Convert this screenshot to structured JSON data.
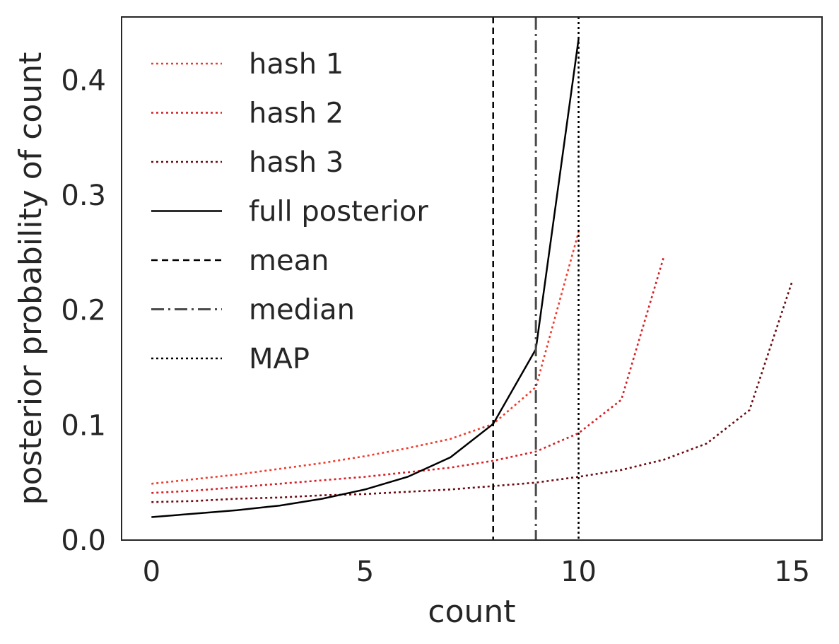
{
  "chart_data": {
    "type": "line",
    "title": "",
    "xlabel": "count",
    "ylabel": "posterior probability of count",
    "xlim": [
      -0.7,
      15.7
    ],
    "ylim": [
      0.0,
      0.455
    ],
    "xticks": [
      0,
      5,
      10,
      15
    ],
    "xtick_labels": [
      "0",
      "5",
      "10",
      "15"
    ],
    "yticks": [
      0.0,
      0.1,
      0.2,
      0.3,
      0.4
    ],
    "ytick_labels": [
      "0.0",
      "0.1",
      "0.2",
      "0.3",
      "0.4"
    ],
    "grid": false,
    "legend_position": "top-left",
    "series": [
      {
        "name": "hash 1",
        "style": "dotted",
        "color": "#ee3b2c",
        "x": [
          0,
          1,
          2,
          3,
          4,
          5,
          6,
          7,
          8,
          9,
          10
        ],
        "y": [
          0.049,
          0.053,
          0.057,
          0.062,
          0.067,
          0.073,
          0.08,
          0.088,
          0.101,
          0.133,
          0.268
        ]
      },
      {
        "name": "hash 2",
        "style": "dotted",
        "color": "#d41f26",
        "x": [
          0,
          1,
          2,
          3,
          4,
          5,
          6,
          7,
          8,
          9,
          10,
          11,
          12
        ],
        "y": [
          0.041,
          0.043,
          0.046,
          0.049,
          0.052,
          0.055,
          0.059,
          0.063,
          0.069,
          0.077,
          0.093,
          0.122,
          0.247
        ]
      },
      {
        "name": "hash 3",
        "style": "dotted",
        "color": "#6b0a11",
        "x": [
          0,
          1,
          2,
          3,
          4,
          5,
          6,
          7,
          8,
          9,
          10,
          11,
          12,
          13,
          14,
          15
        ],
        "y": [
          0.033,
          0.034,
          0.036,
          0.037,
          0.039,
          0.04,
          0.042,
          0.044,
          0.047,
          0.05,
          0.055,
          0.061,
          0.07,
          0.084,
          0.113,
          0.225
        ]
      },
      {
        "name": "full posterior",
        "style": "solid",
        "color": "#000000",
        "x": [
          0,
          1,
          2,
          3,
          4,
          5,
          6,
          7,
          8,
          9,
          10
        ],
        "y": [
          0.02,
          0.023,
          0.026,
          0.03,
          0.036,
          0.044,
          0.055,
          0.072,
          0.101,
          0.166,
          0.436
        ]
      }
    ],
    "vlines": [
      {
        "name": "mean",
        "style": "dashed",
        "color": "#000000",
        "x": 8
      },
      {
        "name": "median",
        "style": "dashdot",
        "color": "#4a4a4a",
        "x": 9
      },
      {
        "name": "MAP",
        "style": "dotted",
        "color": "#000000",
        "x": 10
      }
    ],
    "legend": [
      "hash 1",
      "hash 2",
      "hash 3",
      "full posterior",
      "mean",
      "median",
      "MAP"
    ]
  }
}
